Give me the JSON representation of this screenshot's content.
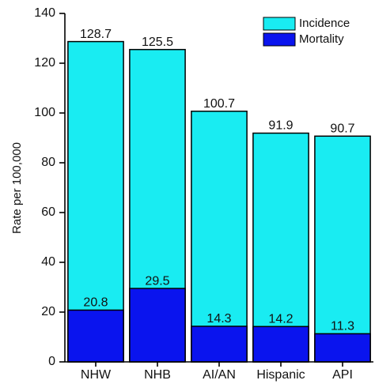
{
  "chart_data": {
    "type": "bar",
    "barmode": "overlay",
    "ylabel": "Rate per 100,000",
    "categories": [
      "NHW",
      "NHB",
      "AI/AN",
      "Hispanic",
      "API"
    ],
    "series": [
      {
        "name": "Incidence",
        "color": "#19ecf2",
        "values": [
          128.7,
          125.5,
          100.7,
          91.9,
          90.7
        ]
      },
      {
        "name": "Mortality",
        "color": "#0a14ee",
        "values": [
          20.8,
          29.5,
          14.3,
          14.2,
          11.3
        ]
      }
    ],
    "ylim": [
      0,
      140
    ],
    "yticks": [
      0,
      20,
      40,
      60,
      80,
      100,
      120,
      140
    ],
    "legend": "upper right",
    "grid": false
  }
}
